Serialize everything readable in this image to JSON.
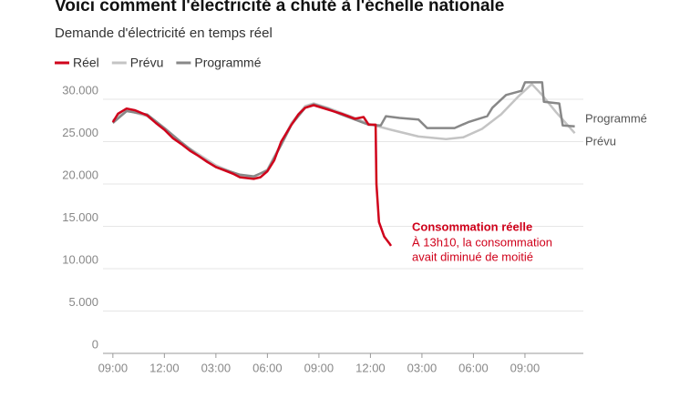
{
  "chart_data": {
    "type": "line",
    "title": "Voici comment l'électricité a chuté à l'échelle nationale",
    "subtitle": "Demande d'électricité en temps réel",
    "series": [
      {
        "name": "Réel",
        "color": "#d0021b",
        "x": [
          0,
          0.3,
          0.8,
          1.3,
          2,
          2.5,
          3,
          3.5,
          4,
          4.5,
          5,
          5.5,
          6,
          6.5,
          7,
          7.4,
          8.2,
          8.6,
          9,
          9.4,
          9.8,
          10.4,
          10.8,
          11.2,
          11.7,
          12.5,
          13.3,
          14.1,
          14.6,
          14.9,
          15.3,
          15.35,
          15.5,
          15.8,
          16.1,
          16.2
        ],
        "values": [
          27300,
          28300,
          28900,
          28700,
          28100,
          27200,
          26400,
          25400,
          24700,
          23900,
          23300,
          22600,
          22000,
          21600,
          21200,
          20800,
          20600,
          20800,
          21500,
          22800,
          25000,
          27000,
          28200,
          29000,
          29300,
          28800,
          28300,
          27700,
          27900,
          27000,
          27000,
          20000,
          15500,
          13800,
          13000,
          12700
        ]
      },
      {
        "name": "Prévu",
        "color": "#c4c4c4",
        "x": [
          0,
          0.8,
          2,
          3,
          4,
          5,
          6,
          7.4,
          8.2,
          9,
          9.8,
          10.4,
          11.2,
          11.7,
          12.5,
          13.3,
          14.1,
          14.9,
          16.2,
          17.8,
          19.4,
          20.4,
          21.5,
          22.6,
          23.6,
          24.4,
          25,
          25.8,
          26.9
        ],
        "values": [
          27500,
          28700,
          28000,
          26500,
          24800,
          23500,
          22200,
          21000,
          20800,
          21700,
          24800,
          27200,
          29200,
          29500,
          29000,
          28400,
          27800,
          27100,
          26400,
          25600,
          25300,
          25500,
          26500,
          28200,
          30300,
          31800,
          30500,
          28500,
          26000
        ]
      },
      {
        "name": "Programmé",
        "color": "#888888",
        "x": [
          0,
          0.8,
          2,
          3,
          4,
          5,
          6,
          7.4,
          8.2,
          9,
          9.8,
          10.4,
          11.2,
          11.7,
          12.5,
          13.3,
          14.1,
          14.9,
          15.6,
          15.9,
          16.7,
          17.8,
          18.3,
          19.9,
          20.7,
          21.8,
          22.1,
          22.9,
          23.8,
          24.0,
          25.0,
          25.1,
          26.0,
          26.2,
          26.9
        ],
        "values": [
          27200,
          28600,
          28200,
          26600,
          24900,
          23300,
          22000,
          21100,
          20900,
          21600,
          24600,
          27000,
          29000,
          29400,
          28900,
          28200,
          27600,
          27000,
          26900,
          28000,
          27800,
          27600,
          26600,
          26600,
          27300,
          28000,
          29000,
          30500,
          31000,
          32000,
          32000,
          29700,
          29500,
          26900,
          26800
        ]
      }
    ],
    "annotations": {
      "title": "Consommation réelle",
      "lines": [
        "À 13h10, la consommation",
        "avait diminué de moitié"
      ]
    },
    "xlim": [
      -1,
      27.4
    ],
    "xticks": [
      {
        "value": 0,
        "label": "09:00"
      },
      {
        "value": 3,
        "label": "12:00"
      },
      {
        "value": 6,
        "label": "03:00"
      },
      {
        "value": 9,
        "label": "06:00"
      },
      {
        "value": 12,
        "label": "09:00"
      },
      {
        "value": 15,
        "label": "12:00"
      },
      {
        "value": 18,
        "label": "03:00"
      },
      {
        "value": 21,
        "label": "06:00"
      },
      {
        "value": 24,
        "label": "09:00"
      }
    ],
    "ylim": [
      0,
      32000
    ],
    "yticks": [
      0,
      {
        "value": 5000,
        "label": "5.000"
      },
      {
        "value": 10000,
        "label": "10.000"
      },
      {
        "value": 15000,
        "label": "15.000"
      },
      {
        "value": 20000,
        "label": "20.000"
      },
      {
        "value": 25000,
        "label": "25.000"
      },
      {
        "value": 30000,
        "label": "30.000"
      }
    ],
    "grid": true,
    "legend": "top-left"
  }
}
